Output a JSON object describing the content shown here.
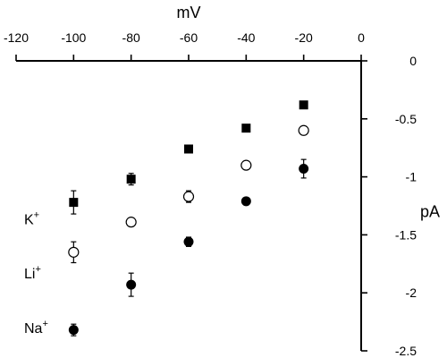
{
  "chart_data": {
    "type": "scatter",
    "xlabel": "mV",
    "ylabel": "pA",
    "xlim": [
      -120,
      0
    ],
    "ylim": [
      -2.5,
      0
    ],
    "xticks": [
      -120,
      -100,
      -80,
      -60,
      -40,
      -20,
      0
    ],
    "yticks": [
      0,
      -0.5,
      -1,
      -1.5,
      -2,
      -2.5
    ],
    "x_axis_position": "top",
    "y_axis_position": "right",
    "grid": false,
    "legend": {
      "placement": "left",
      "entries": [
        {
          "series": "K",
          "label": "K",
          "sup": "+",
          "value_y": -1.36,
          "marker": "filled-square"
        },
        {
          "series": "Li",
          "label": "Li",
          "sup": "+",
          "value_y": -1.83,
          "marker": "open-circle"
        },
        {
          "series": "Na",
          "label": "Na",
          "sup": "+",
          "value_y": -2.3,
          "marker": "filled-circle"
        }
      ]
    },
    "series": [
      {
        "id": "K",
        "marker": "filled-square",
        "color": "#000000",
        "points": [
          {
            "x": -100,
            "y": -1.22,
            "err": 0.1
          },
          {
            "x": -80,
            "y": -1.02,
            "err": 0.05
          },
          {
            "x": -60,
            "y": -0.76,
            "err": 0
          },
          {
            "x": -40,
            "y": -0.58,
            "err": 0
          },
          {
            "x": -20,
            "y": -0.38,
            "err": 0
          }
        ]
      },
      {
        "id": "Li",
        "marker": "open-circle",
        "color": "#000000",
        "points": [
          {
            "x": -100,
            "y": -1.65,
            "err": 0.09
          },
          {
            "x": -80,
            "y": -1.39,
            "err": 0
          },
          {
            "x": -60,
            "y": -1.17,
            "err": 0.05
          },
          {
            "x": -40,
            "y": -0.9,
            "err": 0
          },
          {
            "x": -20,
            "y": -0.6,
            "err": 0
          }
        ]
      },
      {
        "id": "Na",
        "marker": "filled-circle",
        "color": "#000000",
        "points": [
          {
            "x": -100,
            "y": -2.32,
            "err": 0.05
          },
          {
            "x": -80,
            "y": -1.93,
            "err": 0.1
          },
          {
            "x": -60,
            "y": -1.56,
            "err": 0.04
          },
          {
            "x": -40,
            "y": -1.21,
            "err": 0
          },
          {
            "x": -20,
            "y": -0.93,
            "err": 0.08
          }
        ]
      }
    ]
  }
}
